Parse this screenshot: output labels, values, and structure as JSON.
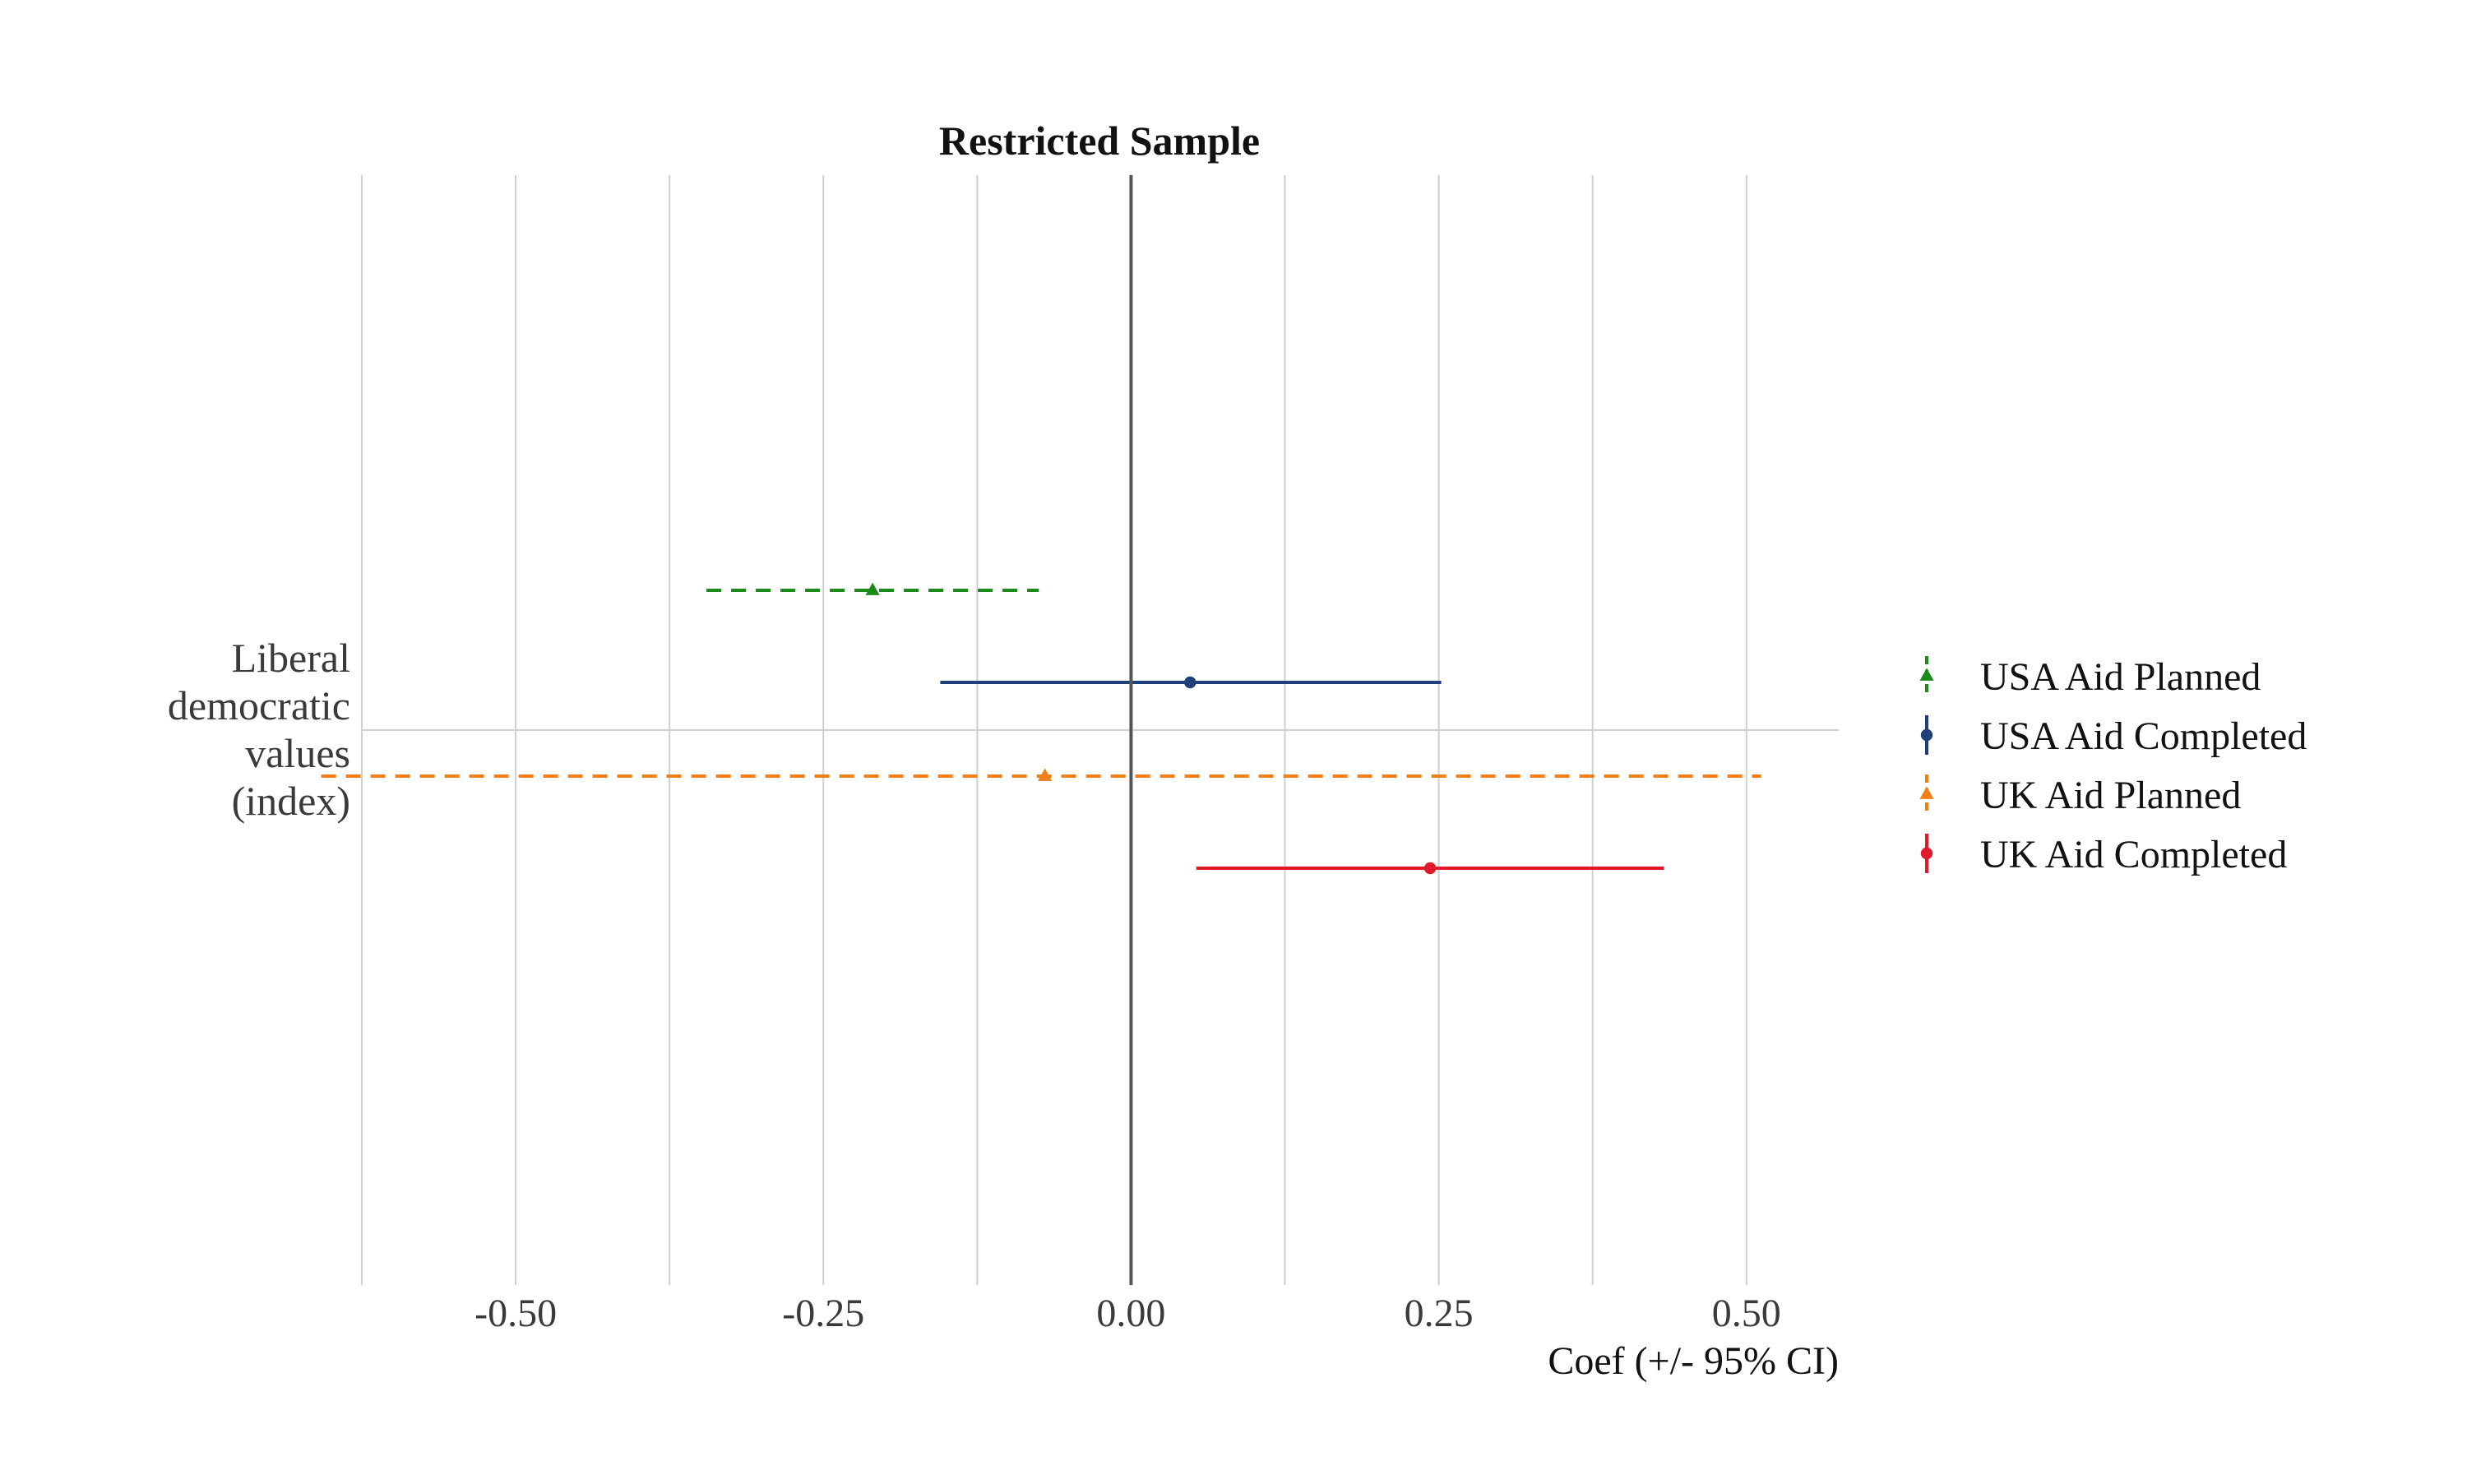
{
  "chart_data": {
    "type": "errorbar",
    "title": "Restricted Sample",
    "xlabel": "Coef (+/- 95% CI)",
    "ylabel": "",
    "xlim": [
      -0.625,
      0.575
    ],
    "x_ticks": [
      -0.5,
      -0.25,
      0.0,
      0.25,
      0.5
    ],
    "x_tick_labels": [
      "-0.50",
      "-0.25",
      "0.00",
      "0.25",
      "0.50"
    ],
    "categories": [
      "Liberal democratic values (index)"
    ],
    "category_label_lines": [
      "Liberal",
      "democratic",
      "values",
      "(index)"
    ],
    "reference_line_x": 0,
    "grid": true,
    "legend_position": "right",
    "series": [
      {
        "name": "USA Aid Planned",
        "estimate": -0.21,
        "ci_low": -0.345,
        "ci_high": -0.075,
        "color": "#1a8a1a",
        "linestyle": "dashed",
        "marker": "triangle"
      },
      {
        "name": "USA Aid Completed",
        "estimate": 0.048,
        "ci_low": -0.155,
        "ci_high": 0.252,
        "color": "#1f3f7a",
        "linestyle": "solid",
        "marker": "circle"
      },
      {
        "name": "UK Aid Planned",
        "estimate": -0.07,
        "ci_low": -0.658,
        "ci_high": 0.512,
        "color": "#f07f16",
        "linestyle": "dashed",
        "marker": "triangle"
      },
      {
        "name": "UK Aid Completed",
        "estimate": 0.243,
        "ci_low": 0.053,
        "ci_high": 0.433,
        "color": "#e3192b",
        "linestyle": "solid",
        "marker": "circle"
      }
    ]
  }
}
